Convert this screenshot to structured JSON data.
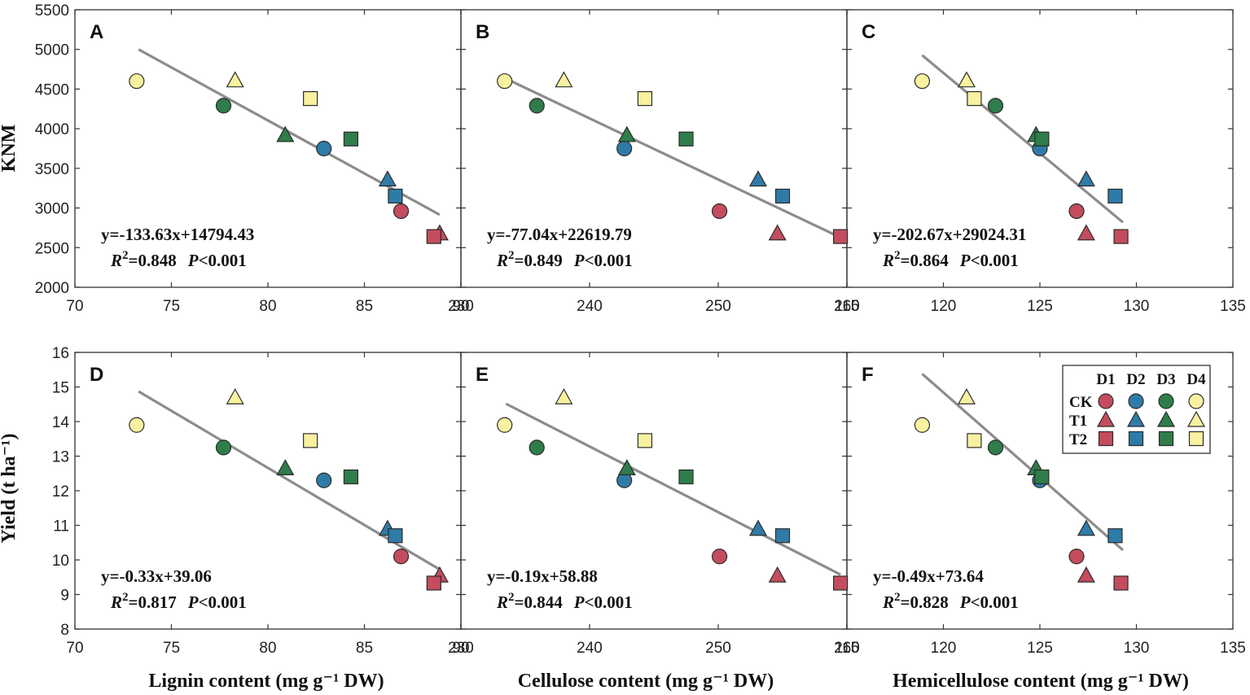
{
  "colors": {
    "D1": "#c34d5e",
    "D2": "#2f7ba8",
    "D3": "#2f7d4a",
    "D4": "#f8f1a0",
    "fit_line": "#8c8c8c",
    "frame": "#333333"
  },
  "chart_data": {
    "type": "scatter",
    "legend": {
      "position": "top-right",
      "columns": [
        "D1",
        "D2",
        "D3",
        "D4"
      ],
      "rows": [
        {
          "label": "CK",
          "shape": "circle"
        },
        {
          "label": "T1",
          "shape": "triangle"
        },
        {
          "label": "T2",
          "shape": "square"
        }
      ]
    },
    "x_axes": [
      {
        "label": "Lignin content (mg g⁻¹ DW)",
        "xlim": [
          70,
          90
        ],
        "ticks": [
          70,
          75,
          80,
          85,
          90
        ]
      },
      {
        "label": "Cellulose content (mg g⁻¹ DW)",
        "xlim": [
          230,
          260
        ],
        "ticks": [
          230,
          240,
          250,
          260
        ]
      },
      {
        "label": "Hemicellulose content (mg g⁻¹ DW)",
        "xlim": [
          115,
          135
        ],
        "ticks": [
          115,
          120,
          125,
          130,
          135
        ]
      }
    ],
    "y_axes": [
      {
        "label": "KNM",
        "ylim": [
          2000,
          5500
        ],
        "ticks": [
          2000,
          2500,
          3000,
          3500,
          4000,
          4500,
          5000,
          5500
        ]
      },
      {
        "label": "Yield (t ha⁻¹)",
        "ylim": [
          8,
          16
        ],
        "ticks": [
          8,
          9,
          10,
          11,
          12,
          13,
          14,
          15,
          16
        ]
      }
    ],
    "panels": [
      {
        "id": "A",
        "x_axis": 0,
        "y_axis": 0,
        "equation": "y=-133.63x+14794.43",
        "r2": "=0.848",
        "p": "<0.001",
        "fit": {
          "slope": -133.63,
          "intercept": 14794.43,
          "x_range": [
            73.3,
            88.9
          ]
        },
        "points": [
          {
            "group": "CK",
            "color": "D1",
            "x": 86.9,
            "y": 2960
          },
          {
            "group": "CK",
            "color": "D2",
            "x": 82.9,
            "y": 3750
          },
          {
            "group": "CK",
            "color": "D3",
            "x": 77.7,
            "y": 4290
          },
          {
            "group": "CK",
            "color": "D4",
            "x": 73.2,
            "y": 4600
          },
          {
            "group": "T1",
            "color": "D1",
            "x": 88.9,
            "y": 2680
          },
          {
            "group": "T1",
            "color": "D2",
            "x": 86.2,
            "y": 3360
          },
          {
            "group": "T1",
            "color": "D3",
            "x": 80.9,
            "y": 3920
          },
          {
            "group": "T1",
            "color": "D4",
            "x": 78.3,
            "y": 4610
          },
          {
            "group": "T2",
            "color": "D1",
            "x": 88.6,
            "y": 2640
          },
          {
            "group": "T2",
            "color": "D2",
            "x": 86.6,
            "y": 3150
          },
          {
            "group": "T2",
            "color": "D3",
            "x": 84.3,
            "y": 3870
          },
          {
            "group": "T2",
            "color": "D4",
            "x": 82.2,
            "y": 4380
          }
        ]
      },
      {
        "id": "B",
        "x_axis": 1,
        "y_axis": 0,
        "equation": "y=-77.04x+22619.79",
        "r2": "=0.849",
        "p": "<0.001",
        "fit": {
          "slope": -77.04,
          "intercept": 22619.79,
          "x_range": [
            233.5,
            259.5
          ]
        },
        "points": [
          {
            "group": "CK",
            "color": "D1",
            "x": 250.1,
            "y": 2960
          },
          {
            "group": "CK",
            "color": "D2",
            "x": 242.7,
            "y": 3750
          },
          {
            "group": "CK",
            "color": "D3",
            "x": 235.9,
            "y": 4290
          },
          {
            "group": "CK",
            "color": "D4",
            "x": 233.4,
            "y": 4600
          },
          {
            "group": "T1",
            "color": "D1",
            "x": 254.6,
            "y": 2680
          },
          {
            "group": "T1",
            "color": "D2",
            "x": 253.1,
            "y": 3360
          },
          {
            "group": "T1",
            "color": "D3",
            "x": 242.9,
            "y": 3920
          },
          {
            "group": "T1",
            "color": "D4",
            "x": 238.0,
            "y": 4610
          },
          {
            "group": "T2",
            "color": "D1",
            "x": 259.5,
            "y": 2640
          },
          {
            "group": "T2",
            "color": "D2",
            "x": 255.0,
            "y": 3150
          },
          {
            "group": "T2",
            "color": "D3",
            "x": 247.5,
            "y": 3870
          },
          {
            "group": "T2",
            "color": "D4",
            "x": 244.3,
            "y": 4380
          }
        ]
      },
      {
        "id": "C",
        "x_axis": 2,
        "y_axis": 0,
        "equation": "y=-202.67x+29024.31",
        "r2": "=0.864",
        "p": "<0.001",
        "fit": {
          "slope": -202.67,
          "intercept": 29024.31,
          "x_range": [
            118.9,
            129.3
          ]
        },
        "points": [
          {
            "group": "CK",
            "color": "D1",
            "x": 126.9,
            "y": 2960
          },
          {
            "group": "CK",
            "color": "D2",
            "x": 125.0,
            "y": 3750
          },
          {
            "group": "CK",
            "color": "D3",
            "x": 122.7,
            "y": 4290
          },
          {
            "group": "CK",
            "color": "D4",
            "x": 118.9,
            "y": 4600
          },
          {
            "group": "T1",
            "color": "D1",
            "x": 127.4,
            "y": 2680
          },
          {
            "group": "T1",
            "color": "D2",
            "x": 127.4,
            "y": 3360
          },
          {
            "group": "T1",
            "color": "D3",
            "x": 124.8,
            "y": 3920
          },
          {
            "group": "T1",
            "color": "D4",
            "x": 121.2,
            "y": 4610
          },
          {
            "group": "T2",
            "color": "D1",
            "x": 129.2,
            "y": 2640
          },
          {
            "group": "T2",
            "color": "D2",
            "x": 128.9,
            "y": 3150
          },
          {
            "group": "T2",
            "color": "D3",
            "x": 125.1,
            "y": 3870
          },
          {
            "group": "T2",
            "color": "D4",
            "x": 121.6,
            "y": 4380
          }
        ]
      },
      {
        "id": "D",
        "x_axis": 0,
        "y_axis": 1,
        "equation": "y=-0.33x+39.06",
        "r2": "=0.817",
        "p": "<0.001",
        "fit": {
          "slope": -0.33,
          "intercept": 39.06,
          "x_range": [
            73.3,
            88.9
          ]
        },
        "points": [
          {
            "group": "CK",
            "color": "D1",
            "x": 86.9,
            "y": 10.1
          },
          {
            "group": "CK",
            "color": "D2",
            "x": 82.9,
            "y": 12.3
          },
          {
            "group": "CK",
            "color": "D3",
            "x": 77.7,
            "y": 13.25
          },
          {
            "group": "CK",
            "color": "D4",
            "x": 73.2,
            "y": 13.9
          },
          {
            "group": "T1",
            "color": "D1",
            "x": 88.9,
            "y": 9.55
          },
          {
            "group": "T1",
            "color": "D2",
            "x": 86.2,
            "y": 10.9
          },
          {
            "group": "T1",
            "color": "D3",
            "x": 80.9,
            "y": 12.65
          },
          {
            "group": "T1",
            "color": "D4",
            "x": 78.3,
            "y": 14.7
          },
          {
            "group": "T2",
            "color": "D1",
            "x": 88.6,
            "y": 9.33
          },
          {
            "group": "T2",
            "color": "D2",
            "x": 86.6,
            "y": 10.7
          },
          {
            "group": "T2",
            "color": "D3",
            "x": 84.3,
            "y": 12.4
          },
          {
            "group": "T2",
            "color": "D4",
            "x": 82.2,
            "y": 13.45
          }
        ]
      },
      {
        "id": "E",
        "x_axis": 1,
        "y_axis": 1,
        "equation": "y=-0.19x+58.88",
        "r2": "=0.844",
        "p": "<0.001",
        "fit": {
          "slope": -0.19,
          "intercept": 58.88,
          "x_range": [
            233.5,
            259.5
          ]
        },
        "points": [
          {
            "group": "CK",
            "color": "D1",
            "x": 250.1,
            "y": 10.1
          },
          {
            "group": "CK",
            "color": "D2",
            "x": 242.7,
            "y": 12.3
          },
          {
            "group": "CK",
            "color": "D3",
            "x": 235.9,
            "y": 13.25
          },
          {
            "group": "CK",
            "color": "D4",
            "x": 233.4,
            "y": 13.9
          },
          {
            "group": "T1",
            "color": "D1",
            "x": 254.6,
            "y": 9.55
          },
          {
            "group": "T1",
            "color": "D2",
            "x": 253.1,
            "y": 10.9
          },
          {
            "group": "T1",
            "color": "D3",
            "x": 242.9,
            "y": 12.65
          },
          {
            "group": "T1",
            "color": "D4",
            "x": 238.0,
            "y": 14.7
          },
          {
            "group": "T2",
            "color": "D1",
            "x": 259.5,
            "y": 9.33
          },
          {
            "group": "T2",
            "color": "D2",
            "x": 255.0,
            "y": 10.7
          },
          {
            "group": "T2",
            "color": "D3",
            "x": 247.5,
            "y": 12.4
          },
          {
            "group": "T2",
            "color": "D4",
            "x": 244.3,
            "y": 13.45
          }
        ]
      },
      {
        "id": "F",
        "x_axis": 2,
        "y_axis": 1,
        "equation": "y=-0.49x+73.64",
        "r2": "=0.828",
        "p": "<0.001",
        "fit": {
          "slope": -0.49,
          "intercept": 73.64,
          "x_range": [
            118.9,
            129.3
          ]
        },
        "points": [
          {
            "group": "CK",
            "color": "D1",
            "x": 126.9,
            "y": 10.1
          },
          {
            "group": "CK",
            "color": "D2",
            "x": 125.0,
            "y": 12.3
          },
          {
            "group": "CK",
            "color": "D3",
            "x": 122.7,
            "y": 13.25
          },
          {
            "group": "CK",
            "color": "D4",
            "x": 118.9,
            "y": 13.9
          },
          {
            "group": "T1",
            "color": "D1",
            "x": 127.4,
            "y": 9.55
          },
          {
            "group": "T1",
            "color": "D2",
            "x": 127.4,
            "y": 10.9
          },
          {
            "group": "T1",
            "color": "D3",
            "x": 124.8,
            "y": 12.65
          },
          {
            "group": "T1",
            "color": "D4",
            "x": 121.2,
            "y": 14.7
          },
          {
            "group": "T2",
            "color": "D1",
            "x": 129.2,
            "y": 9.33
          },
          {
            "group": "T2",
            "color": "D2",
            "x": 128.9,
            "y": 10.7
          },
          {
            "group": "T2",
            "color": "D3",
            "x": 125.1,
            "y": 12.4
          },
          {
            "group": "T2",
            "color": "D4",
            "x": 121.6,
            "y": 13.45
          }
        ]
      }
    ]
  }
}
